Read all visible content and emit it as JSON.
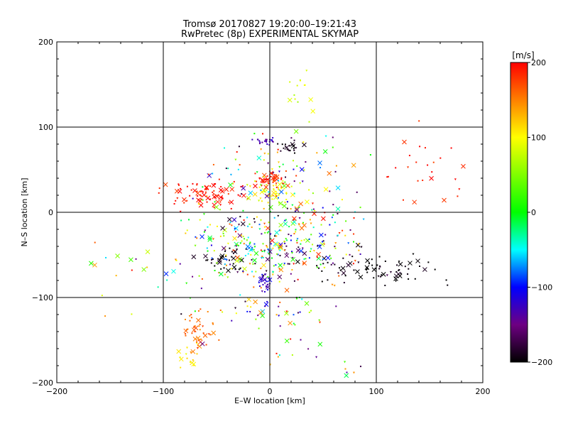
{
  "chart_data": {
    "type": "scatter",
    "title": "Tromsø 20170827 19:20:00–19:21:43",
    "subtitle": "RwPretec (8p) EXPERIMENTAL SKYMAP",
    "xlabel": "E–W location [km]",
    "ylabel": "N–S location [km]",
    "xlim": [
      -200,
      200
    ],
    "ylim": [
      -200,
      200
    ],
    "x_ticks": [
      "−200",
      "−100",
      "0",
      "100",
      "200"
    ],
    "y_ticks": [
      "−200",
      "−100",
      "0",
      "100",
      "200"
    ],
    "grid": "on (every 100 km)",
    "colorbar": {
      "label": "[m/s]",
      "range": [
        -200,
        200
      ],
      "ticks": [
        "200",
        "100",
        "0",
        "−100",
        "−200"
      ],
      "colormap": "black–purple–blue–cyan–green–yellow–red"
    },
    "clusters": [
      {
        "cx": -60,
        "cy": 20,
        "rx": 40,
        "ry": 14,
        "n": 80,
        "v": 190
      },
      {
        "cx": 0,
        "cy": 38,
        "rx": 12,
        "ry": 8,
        "n": 45,
        "v": 190
      },
      {
        "cx": 8,
        "cy": 25,
        "rx": 25,
        "ry": 12,
        "n": 45,
        "v": 95
      },
      {
        "cx": -5,
        "cy": 84,
        "rx": 8,
        "ry": 4,
        "n": 22,
        "v": -130
      },
      {
        "cx": 20,
        "cy": 76,
        "rx": 12,
        "ry": 6,
        "n": 20,
        "v": -200
      },
      {
        "cx": -40,
        "cy": -55,
        "rx": 18,
        "ry": 12,
        "n": 35,
        "v": -200
      },
      {
        "cx": -5,
        "cy": -82,
        "rx": 6,
        "ry": 10,
        "n": 22,
        "v": -120
      },
      {
        "cx": 100,
        "cy": -65,
        "rx": 50,
        "ry": 18,
        "n": 75,
        "v": -200
      },
      {
        "cx": -20,
        "cy": -40,
        "rx": 50,
        "ry": 40,
        "n": 200,
        "v": null
      },
      {
        "cx": 40,
        "cy": -30,
        "rx": 50,
        "ry": 40,
        "n": 150,
        "v": null
      },
      {
        "cx": 0,
        "cy": 50,
        "rx": 60,
        "ry": 40,
        "n": 90,
        "v": null
      },
      {
        "cx": -68,
        "cy": -135,
        "rx": 15,
        "ry": 22,
        "n": 45,
        "v": 160
      },
      {
        "cx": 10,
        "cy": -115,
        "rx": 40,
        "ry": 20,
        "n": 45,
        "v": null
      },
      {
        "cx": 150,
        "cy": 55,
        "rx": 30,
        "ry": 35,
        "n": 25,
        "v": 190
      },
      {
        "cx": 30,
        "cy": 140,
        "rx": 10,
        "ry": 25,
        "n": 14,
        "v": 80
      },
      {
        "cx": -80,
        "cy": -170,
        "rx": 10,
        "ry": 12,
        "n": 14,
        "v": 100
      },
      {
        "cx": -120,
        "cy": -70,
        "rx": 60,
        "ry": 50,
        "n": 25,
        "v": null
      },
      {
        "cx": 40,
        "cy": -170,
        "rx": 60,
        "ry": 25,
        "n": 20,
        "v": null
      }
    ]
  }
}
